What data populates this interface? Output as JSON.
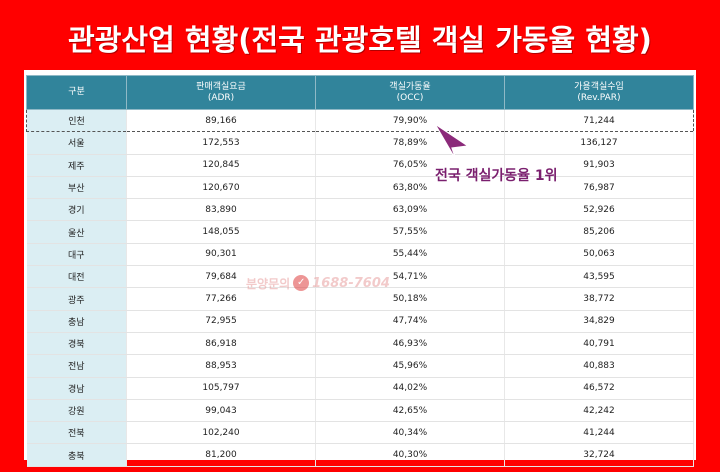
{
  "title": "관광산업 현황(전국 관광호텔 객실 가동율 현황)",
  "table": {
    "headers": [
      {
        "line1": "구분",
        "line2": ""
      },
      {
        "line1": "판매객실요금",
        "line2": "(ADR)"
      },
      {
        "line1": "객실가동율",
        "line2": "(OCC)"
      },
      {
        "line1": "가용객실수입",
        "line2": "(Rev.PAR)"
      }
    ],
    "rows": [
      {
        "region": "인천",
        "adr": "89,166",
        "occ": "79,90%",
        "revpar": "71,244"
      },
      {
        "region": "서울",
        "adr": "172,553",
        "occ": "78,89%",
        "revpar": "136,127"
      },
      {
        "region": "제주",
        "adr": "120,845",
        "occ": "76,05%",
        "revpar": "91,903"
      },
      {
        "region": "부산",
        "adr": "120,670",
        "occ": "63,80%",
        "revpar": "76,987"
      },
      {
        "region": "경기",
        "adr": "83,890",
        "occ": "63,09%",
        "revpar": "52,926"
      },
      {
        "region": "울산",
        "adr": "148,055",
        "occ": "57,55%",
        "revpar": "85,206"
      },
      {
        "region": "대구",
        "adr": "90,301",
        "occ": "55,44%",
        "revpar": "50,063"
      },
      {
        "region": "대전",
        "adr": "79,684",
        "occ": "54,71%",
        "revpar": "43,595"
      },
      {
        "region": "광주",
        "adr": "77,266",
        "occ": "50,18%",
        "revpar": "38,772"
      },
      {
        "region": "충남",
        "adr": "72,955",
        "occ": "47,74%",
        "revpar": "34,829"
      },
      {
        "region": "경북",
        "adr": "86,918",
        "occ": "46,93%",
        "revpar": "40,791"
      },
      {
        "region": "전남",
        "adr": "88,953",
        "occ": "45,96%",
        "revpar": "40,883"
      },
      {
        "region": "경남",
        "adr": "105,797",
        "occ": "44,02%",
        "revpar": "46,572"
      },
      {
        "region": "강원",
        "adr": "99,043",
        "occ": "42,65%",
        "revpar": "42,242"
      },
      {
        "region": "전북",
        "adr": "102,240",
        "occ": "40,34%",
        "revpar": "41,244"
      },
      {
        "region": "충북",
        "adr": "81,200",
        "occ": "40,30%",
        "revpar": "32,724"
      }
    ]
  },
  "annotation": {
    "text": "전국 객실가동율 1위",
    "arrow_icon": "arrow-pointer-icon"
  },
  "watermark": {
    "label": "분양문의",
    "badge": "✓",
    "phone": "1688-7604"
  },
  "colors": {
    "background": "#ff0000",
    "header": "#31849b",
    "region_cell": "#dbeef3",
    "annotation": "#7a1f6e"
  }
}
